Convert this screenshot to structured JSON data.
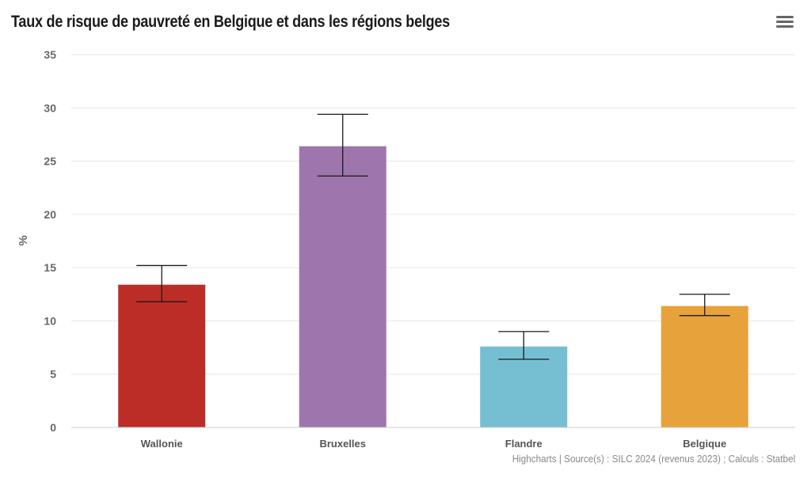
{
  "title": "Taux de risque de pauvreté en Belgique et dans les régions belges",
  "credits": "Highcharts | Source(s) : SILC 2024 (revenus 2023) ; Calculs : Statbel",
  "menu_icon": "hamburger-menu-icon",
  "chart_data": {
    "type": "bar",
    "title": "Taux de risque de pauvreté en Belgique et dans les régions belges",
    "ylabel": "%",
    "xlabel": "",
    "ylim": [
      0,
      35
    ],
    "yticks": [
      0,
      5,
      10,
      15,
      20,
      25,
      30,
      35
    ],
    "grid": true,
    "categories": [
      "Wallonie",
      "Bruxelles",
      "Flandre",
      "Belgique"
    ],
    "values": [
      13.4,
      26.4,
      7.6,
      11.4
    ],
    "error_low": [
      11.8,
      23.6,
      6.4,
      10.5
    ],
    "error_high": [
      15.2,
      29.4,
      9.0,
      12.5
    ],
    "colors": [
      "#bd2d27",
      "#9e76ad",
      "#76bfd3",
      "#e8a23b"
    ]
  }
}
